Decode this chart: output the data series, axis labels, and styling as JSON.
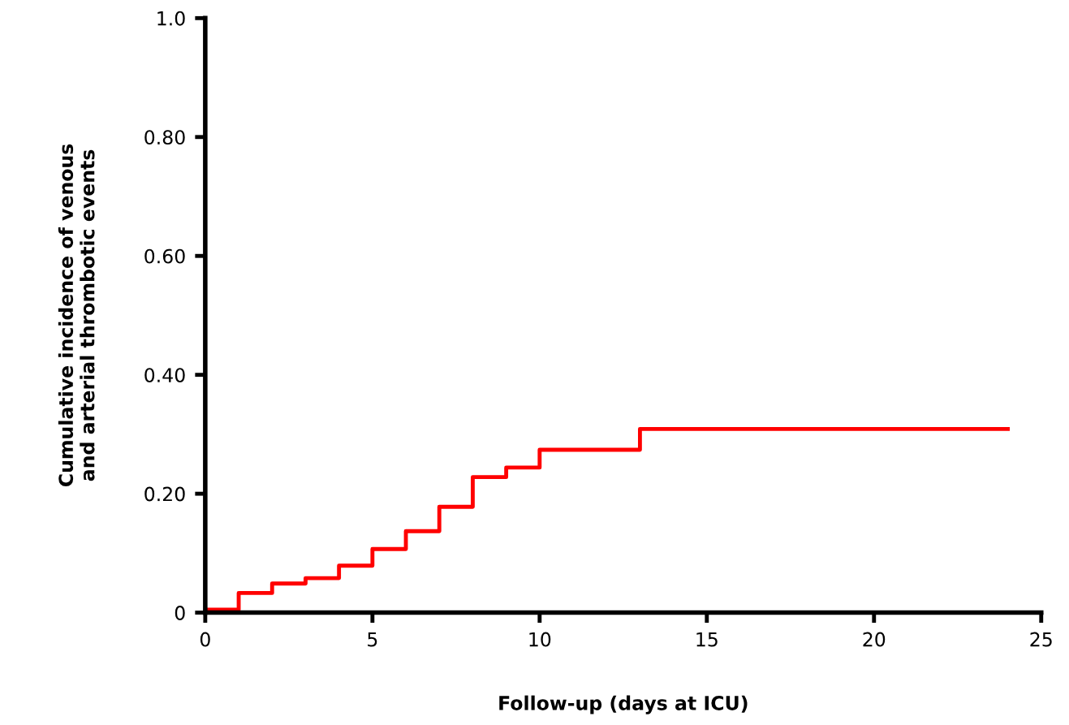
{
  "chart_data": {
    "type": "step",
    "xlabel": "Follow-up (days at ICU)",
    "ylabel": "Cumulative incidence of venous\nand arterial thrombotic events",
    "x": [
      0,
      1,
      2,
      3,
      4,
      5,
      6,
      7,
      8,
      9,
      10,
      13,
      24
    ],
    "series": [
      {
        "color": "#ff0000",
        "values": [
          0.005,
          0.033,
          0.049,
          0.058,
          0.079,
          0.107,
          0.137,
          0.178,
          0.228,
          0.244,
          0.274,
          0.309,
          0.309
        ]
      }
    ],
    "xlim": [
      0,
      25
    ],
    "xticks": [
      0,
      5,
      10,
      15,
      20,
      25
    ],
    "ylim": [
      0,
      1.0
    ],
    "yticks": [
      {
        "value": 0,
        "label": "0"
      },
      {
        "value": 0.2,
        "label": "0.20"
      },
      {
        "value": 0.4,
        "label": "0.40"
      },
      {
        "value": 0.6,
        "label": "0.60"
      },
      {
        "value": 0.8,
        "label": "0.80"
      },
      {
        "value": 1.0,
        "label": "1.0"
      }
    ],
    "grid": false,
    "legend": false
  }
}
